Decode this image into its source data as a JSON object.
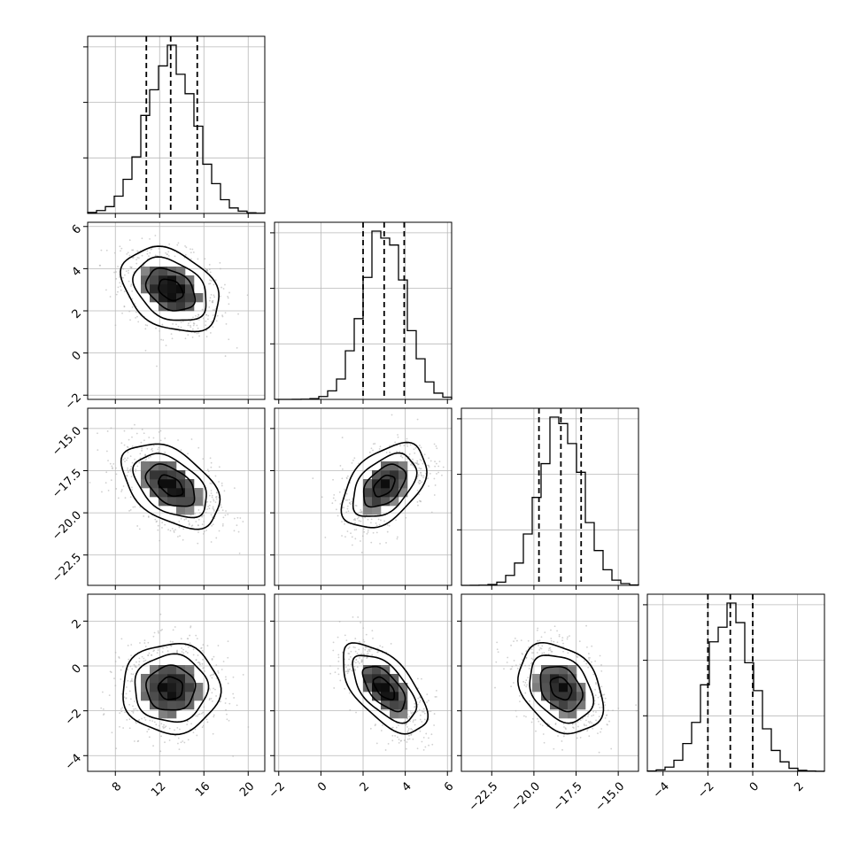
{
  "chart_data": {
    "type": "corner",
    "description_note": "",
    "dimensions": [
      {
        "range": [
          5.5,
          21.5
        ],
        "ticks": [
          8,
          12,
          16,
          20
        ],
        "tick_labels": [
          "8",
          "12",
          "16",
          "20"
        ],
        "quantiles": [
          10.8,
          13.0,
          15.4
        ],
        "mean": 13.0,
        "sd": 2.2,
        "hist_peak_ratio": 1.0
      },
      {
        "range": [
          -2.2,
          6.2
        ],
        "ticks": [
          -2,
          0,
          2,
          4,
          6
        ],
        "tick_labels": [
          "−2",
          "0",
          "2",
          "4",
          "6"
        ],
        "quantiles": [
          2.0,
          3.0,
          3.95
        ],
        "mean": 3.0,
        "sd": 1.0
      },
      {
        "range": [
          -24.3,
          -13.8
        ],
        "ticks": [
          -22.5,
          -20.0,
          -17.5,
          -15.0
        ],
        "tick_labels": [
          "−22.5",
          "−20.0",
          "−17.5",
          "−15.0"
        ],
        "quantiles": [
          -19.7,
          -18.4,
          -17.2
        ],
        "mean": -18.4,
        "sd": 1.25
      },
      {
        "range": [
          -4.7,
          3.2
        ],
        "ticks": [
          -4,
          -2,
          0,
          2
        ],
        "tick_labels": [
          "−4",
          "−2",
          "0",
          "2"
        ],
        "quantiles": [
          -2.0,
          -1.0,
          0.0
        ],
        "mean": -1.0,
        "sd": 1.0
      }
    ],
    "correlations": {
      "1_0": -0.32,
      "2_0": -0.45,
      "2_1": 0.45,
      "3_0": 0.0,
      "3_1": -0.6,
      "3_2": -0.3
    },
    "contour_levels_sigma": [
      0.5,
      1.0,
      1.5,
      2.0
    ],
    "histogram_bins": 20,
    "grid": true,
    "colors": {
      "hist_line": "#000000",
      "contour": "#000000",
      "density_dark": "#000000",
      "scatter": "#b0b0b0",
      "grid": "#b8b8b8",
      "quantile_line": "#000000"
    }
  }
}
